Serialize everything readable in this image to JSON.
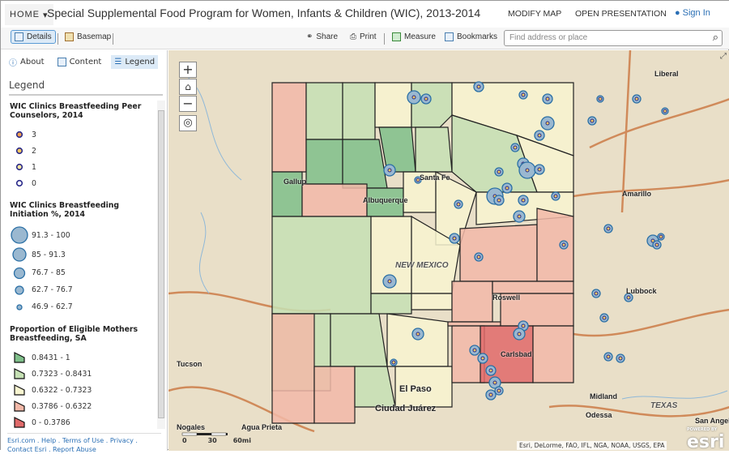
{
  "header": {
    "home": "HOME",
    "title": "Special Supplemental Food Program for Women, Infants & Children (WIC), 2013-2014",
    "modify_map": "MODIFY MAP",
    "open_presentation": "OPEN PRESENTATION",
    "sign_in": "Sign In"
  },
  "toolbar": {
    "details": "Details",
    "basemap": "Basemap",
    "share": "Share",
    "print": "Print",
    "measure": "Measure",
    "bookmarks": "Bookmarks",
    "search_placeholder": "Find address or place"
  },
  "sidebar": {
    "tabs": [
      "About",
      "Content",
      "Legend"
    ],
    "legend_heading": "Legend",
    "layers": [
      {
        "title": "WIC Clinics Breastfeeding Peer Counselors, 2014",
        "items": [
          "3",
          "2",
          "1",
          "0"
        ],
        "colors": [
          "#f0a050",
          "#f4c860",
          "#f8e8a0",
          "#ffffff"
        ]
      },
      {
        "title": "WIC Clinics Breastfeeding Initiation %, 2014",
        "items": [
          "91.3 - 100",
          "85 - 91.3",
          "76.7 - 85",
          "62.7 - 76.7",
          "46.9 - 62.7"
        ]
      },
      {
        "title": "Proportion of Eligible Mothers Breastfeeding, SA",
        "items": [
          "0.8431 - 1",
          "0.7323 - 0.8431",
          "0.6322 - 0.7323",
          "0.3786 - 0.6322",
          "0 - 0.3786"
        ],
        "colors": [
          "#7fbf8a",
          "#c5e0b4",
          "#f8f5d0",
          "#f2b8a8",
          "#e06a6a"
        ]
      }
    ],
    "footer": {
      "links": [
        "Esri.com",
        "Help",
        "Terms of Use",
        "Privacy",
        "Contact Esri",
        "Report Abuse"
      ]
    }
  },
  "map": {
    "labels": [
      "Liberal",
      "Amarillo",
      "Lubbock",
      "Roswell",
      "Carlsbad",
      "Tucson",
      "El Paso",
      "Ciudad Juárez",
      "Midland",
      "Odessa",
      "TEXAS",
      "San Angelo",
      "Nogales",
      "Agua Prieta",
      "Gallup",
      "Albuquerque",
      "Santa Fe",
      "NEW MEXICO"
    ],
    "scale": [
      "0",
      "30",
      "60mi"
    ],
    "attribution": "Esri, DeLorme, FAO, IFL, NGA, NOAA, USGS, EPA",
    "powered_by": "POWERED BY",
    "esri": "esri"
  }
}
